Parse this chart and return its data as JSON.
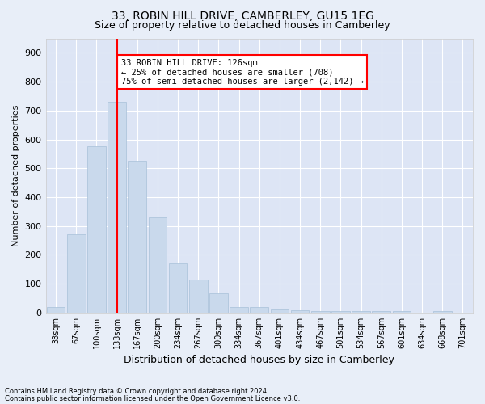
{
  "title": "33, ROBIN HILL DRIVE, CAMBERLEY, GU15 1EG",
  "subtitle": "Size of property relative to detached houses in Camberley",
  "xlabel": "Distribution of detached houses by size in Camberley",
  "ylabel": "Number of detached properties",
  "categories": [
    "33sqm",
    "67sqm",
    "100sqm",
    "133sqm",
    "167sqm",
    "200sqm",
    "234sqm",
    "267sqm",
    "300sqm",
    "334sqm",
    "367sqm",
    "401sqm",
    "434sqm",
    "467sqm",
    "501sqm",
    "534sqm",
    "567sqm",
    "601sqm",
    "634sqm",
    "668sqm",
    "701sqm"
  ],
  "values": [
    20,
    270,
    575,
    730,
    525,
    330,
    170,
    115,
    68,
    18,
    18,
    12,
    8,
    6,
    5,
    5,
    5,
    5,
    0,
    5,
    0
  ],
  "bar_color": "#c9d9ec",
  "bar_edge_color": "#a8c0d8",
  "vline_x": 3,
  "vline_color": "red",
  "annotation_text": "33 ROBIN HILL DRIVE: 126sqm\n← 25% of detached houses are smaller (708)\n75% of semi-detached houses are larger (2,142) →",
  "annotation_box_color": "white",
  "annotation_box_edge_color": "red",
  "ylim": [
    0,
    950
  ],
  "yticks": [
    0,
    100,
    200,
    300,
    400,
    500,
    600,
    700,
    800,
    900
  ],
  "background_color": "#e8eef8",
  "plot_bg_color": "#dde5f5",
  "grid_color": "white",
  "title_fontsize": 10,
  "subtitle_fontsize": 9,
  "footnote1": "Contains HM Land Registry data © Crown copyright and database right 2024.",
  "footnote2": "Contains public sector information licensed under the Open Government Licence v3.0."
}
